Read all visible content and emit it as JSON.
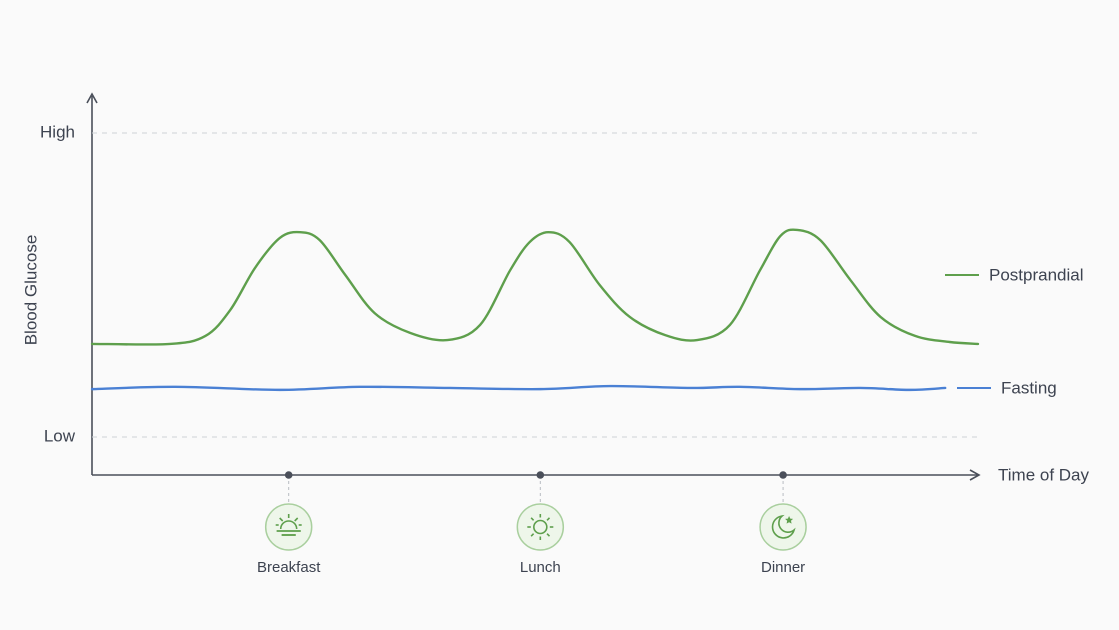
{
  "chart_data": {
    "type": "line",
    "x_label": "Time of Day",
    "y_label": "Blood Glucose",
    "xlim": [
      0,
      100
    ],
    "ylim": [
      0,
      10
    ],
    "yticks": [
      {
        "value": 1,
        "label": "Low"
      },
      {
        "value": 9,
        "label": "High"
      }
    ],
    "grid": true,
    "legend": "right",
    "series": [
      {
        "name": "Postprandial",
        "color": "#5e9f4c",
        "x": [
          0,
          8.8,
          12.8,
          15.6,
          18.4,
          21.2,
          23.5,
          25.7,
          28.6,
          31.9,
          35.9,
          40.1,
          43.8,
          47.2,
          49.4,
          51.5,
          53.9,
          57.3,
          60.7,
          64.7,
          68.3,
          72.0,
          75.4,
          77.7,
          79.6,
          82.2,
          85.6,
          89.0,
          92.9,
          96.8,
          100
        ],
        "values": [
          3.45,
          3.45,
          3.66,
          4.34,
          5.45,
          6.24,
          6.39,
          6.18,
          5.26,
          4.26,
          3.74,
          3.55,
          3.95,
          5.39,
          6.13,
          6.39,
          6.13,
          5.0,
          4.16,
          3.68,
          3.55,
          3.95,
          5.39,
          6.29,
          6.45,
          6.18,
          5.13,
          4.16,
          3.66,
          3.5,
          3.45
        ]
      },
      {
        "name": "Fasting",
        "color": "#4a80d4",
        "x": [
          0,
          9.4,
          21.2,
          30.2,
          40.4,
          50.6,
          58.5,
          67.5,
          73.1,
          79.9,
          86.7,
          92.3,
          96.3
        ],
        "values": [
          2.26,
          2.32,
          2.24,
          2.32,
          2.29,
          2.26,
          2.34,
          2.29,
          2.32,
          2.26,
          2.29,
          2.24,
          2.29
        ]
      }
    ],
    "annotations": [
      {
        "x": 22.2,
        "label": "Breakfast"
      },
      {
        "x": 50.6,
        "label": "Lunch"
      },
      {
        "x": 78.0,
        "label": "Dinner"
      }
    ]
  }
}
